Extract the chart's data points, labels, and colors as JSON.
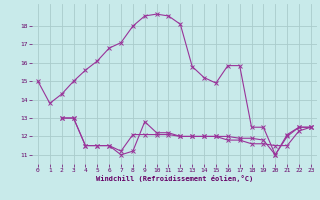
{
  "title": "",
  "xlabel": "Windchill (Refroidissement éolien,°C)",
  "ylabel": "",
  "bg_color": "#c8eaea",
  "grid_color": "#aacccc",
  "line_color": "#993399",
  "xlim": [
    -0.5,
    23.5
  ],
  "ylim": [
    10.5,
    19.2
  ],
  "xticks": [
    0,
    1,
    2,
    3,
    4,
    5,
    6,
    7,
    8,
    9,
    10,
    11,
    12,
    13,
    14,
    15,
    16,
    17,
    18,
    19,
    20,
    21,
    22,
    23
  ],
  "yticks": [
    11,
    12,
    13,
    14,
    15,
    16,
    17,
    18
  ],
  "line1_x": [
    0,
    1,
    2,
    3,
    4,
    5,
    6,
    7,
    8,
    9,
    10,
    11,
    12,
    13,
    14,
    15,
    16,
    17,
    18,
    19,
    20,
    21,
    22,
    23
  ],
  "line1_y": [
    15.0,
    13.8,
    14.3,
    15.0,
    15.6,
    16.1,
    16.8,
    17.1,
    18.0,
    18.55,
    18.65,
    18.55,
    18.1,
    15.8,
    15.2,
    14.9,
    15.85,
    15.85,
    12.5,
    12.5,
    11.0,
    12.0,
    12.5,
    12.5
  ],
  "line2_x": [
    2,
    3,
    4,
    5,
    6,
    7,
    8,
    9,
    10,
    11,
    12,
    13,
    14,
    15,
    16,
    17,
    18,
    19,
    20,
    21,
    22,
    23
  ],
  "line2_y": [
    13.0,
    13.0,
    11.5,
    11.5,
    11.5,
    11.0,
    11.2,
    12.8,
    12.2,
    12.2,
    12.0,
    12.0,
    12.0,
    12.0,
    11.8,
    11.8,
    11.6,
    11.6,
    11.5,
    11.5,
    12.3,
    12.5
  ],
  "line3_x": [
    2,
    3,
    4,
    5,
    6,
    7,
    8,
    9,
    10,
    11,
    12,
    13,
    14,
    15,
    16,
    17,
    18,
    19,
    20,
    21,
    22,
    23
  ],
  "line3_y": [
    13.0,
    13.0,
    11.5,
    11.5,
    11.5,
    11.2,
    12.1,
    12.1,
    12.1,
    12.1,
    12.0,
    12.0,
    12.0,
    12.0,
    12.0,
    11.9,
    11.9,
    11.8,
    11.0,
    12.1,
    12.5,
    12.5
  ]
}
